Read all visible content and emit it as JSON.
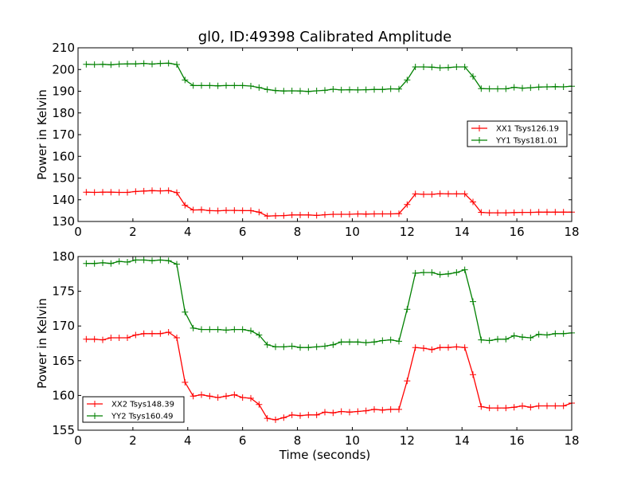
{
  "chart_data": [
    {
      "type": "line",
      "title": "gl0, ID:49398 Calibrated Amplitude",
      "xlabel": "",
      "ylabel": "Power in Kelvin",
      "xlim": [
        0,
        18
      ],
      "ylim": [
        130,
        210
      ],
      "xticks": [
        0,
        2,
        4,
        6,
        8,
        10,
        12,
        14,
        16,
        18
      ],
      "yticks": [
        130,
        140,
        150,
        160,
        170,
        180,
        190,
        200,
        210
      ],
      "grid": false,
      "legend_position": "center-right",
      "x": [
        0.3,
        0.6,
        0.9,
        1.2,
        1.5,
        1.8,
        2.1,
        2.4,
        2.7,
        3.0,
        3.3,
        3.6,
        3.9,
        4.2,
        4.5,
        4.8,
        5.1,
        5.4,
        5.7,
        6.0,
        6.3,
        6.6,
        6.9,
        7.2,
        7.5,
        7.8,
        8.1,
        8.4,
        8.7,
        9.0,
        9.3,
        9.6,
        9.9,
        10.2,
        10.5,
        10.8,
        11.1,
        11.4,
        11.7,
        12.0,
        12.3,
        12.6,
        12.9,
        13.2,
        13.5,
        13.8,
        14.1,
        14.4,
        14.7,
        15.0,
        15.3,
        15.6,
        15.9,
        16.2,
        16.5,
        16.8,
        17.1,
        17.4,
        17.7,
        18.0
      ],
      "series": [
        {
          "name": "XX1 Tsys126.19",
          "color": "#ff0000",
          "values": [
            143.5,
            143.4,
            143.5,
            143.5,
            143.4,
            143.4,
            143.8,
            144.0,
            144.2,
            144.1,
            144.2,
            143.3,
            137.5,
            135.3,
            135.4,
            135.0,
            134.9,
            135.1,
            135.1,
            135.0,
            135.0,
            134.3,
            132.5,
            132.6,
            132.7,
            133.0,
            133.0,
            133.0,
            132.8,
            133.1,
            133.3,
            133.3,
            133.3,
            133.5,
            133.4,
            133.5,
            133.5,
            133.5,
            133.6,
            137.8,
            142.7,
            142.5,
            142.5,
            142.8,
            142.7,
            142.7,
            142.7,
            139.0,
            134.2,
            134.0,
            134.0,
            134.0,
            134.1,
            134.2,
            134.2,
            134.3,
            134.3,
            134.3,
            134.3,
            134.3
          ]
        },
        {
          "name": "YY1 Tsys181.01",
          "color": "#008000",
          "values": [
            202.4,
            202.3,
            202.4,
            202.2,
            202.5,
            202.6,
            202.6,
            202.8,
            202.5,
            202.8,
            202.9,
            202.3,
            195.2,
            192.6,
            192.6,
            192.6,
            192.5,
            192.6,
            192.6,
            192.6,
            192.4,
            191.7,
            190.8,
            190.3,
            190.1,
            190.2,
            190.1,
            189.9,
            190.2,
            190.4,
            190.9,
            190.6,
            190.7,
            190.6,
            190.7,
            190.8,
            190.8,
            191.1,
            191.0,
            195.2,
            201.2,
            201.2,
            201.1,
            200.8,
            200.9,
            201.2,
            201.2,
            196.8,
            191.2,
            191.1,
            191.1,
            191.1,
            191.8,
            191.4,
            191.6,
            191.9,
            192.0,
            192.1,
            192.0,
            192.3
          ]
        }
      ]
    },
    {
      "type": "line",
      "title": "",
      "xlabel": "Time (seconds)",
      "ylabel": "Power in Kelvin",
      "xlim": [
        0,
        18
      ],
      "ylim": [
        155,
        180
      ],
      "xticks": [
        0,
        2,
        4,
        6,
        8,
        10,
        12,
        14,
        16,
        18
      ],
      "yticks": [
        155,
        160,
        165,
        170,
        175,
        180
      ],
      "grid": false,
      "legend_position": "bottom-left",
      "x": [
        0.3,
        0.6,
        0.9,
        1.2,
        1.5,
        1.8,
        2.1,
        2.4,
        2.7,
        3.0,
        3.3,
        3.6,
        3.9,
        4.2,
        4.5,
        4.8,
        5.1,
        5.4,
        5.7,
        6.0,
        6.3,
        6.6,
        6.9,
        7.2,
        7.5,
        7.8,
        8.1,
        8.4,
        8.7,
        9.0,
        9.3,
        9.6,
        9.9,
        10.2,
        10.5,
        10.8,
        11.1,
        11.4,
        11.7,
        12.0,
        12.3,
        12.6,
        12.9,
        13.2,
        13.5,
        13.8,
        14.1,
        14.4,
        14.7,
        15.0,
        15.3,
        15.6,
        15.9,
        16.2,
        16.5,
        16.8,
        17.1,
        17.4,
        17.7,
        18.0
      ],
      "series": [
        {
          "name": "XX2 Tsys148.39",
          "color": "#ff0000",
          "values": [
            168.1,
            168.1,
            168.0,
            168.3,
            168.3,
            168.3,
            168.7,
            168.9,
            168.9,
            168.9,
            169.1,
            168.3,
            161.9,
            159.9,
            160.1,
            159.9,
            159.7,
            159.9,
            160.1,
            159.7,
            159.6,
            158.7,
            156.7,
            156.5,
            156.8,
            157.2,
            157.1,
            157.2,
            157.2,
            157.6,
            157.5,
            157.7,
            157.6,
            157.7,
            157.8,
            158.0,
            157.9,
            158.0,
            158.0,
            162.1,
            166.9,
            166.8,
            166.6,
            166.9,
            166.9,
            167.0,
            166.9,
            163.0,
            158.4,
            158.2,
            158.2,
            158.2,
            158.3,
            158.5,
            158.3,
            158.5,
            158.5,
            158.5,
            158.5,
            158.9
          ]
        },
        {
          "name": "YY2 Tsys160.49",
          "color": "#008000",
          "values": [
            179.0,
            179.0,
            179.1,
            179.0,
            179.3,
            179.2,
            179.5,
            179.5,
            179.4,
            179.5,
            179.4,
            178.9,
            172.0,
            169.7,
            169.5,
            169.5,
            169.5,
            169.4,
            169.5,
            169.5,
            169.3,
            168.7,
            167.3,
            167.0,
            167.0,
            167.1,
            166.9,
            166.9,
            167.0,
            167.1,
            167.3,
            167.7,
            167.7,
            167.7,
            167.6,
            167.7,
            167.9,
            168.0,
            167.8,
            172.4,
            177.6,
            177.7,
            177.7,
            177.4,
            177.5,
            177.7,
            178.1,
            173.5,
            168.0,
            167.9,
            168.1,
            168.1,
            168.6,
            168.4,
            168.3,
            168.8,
            168.7,
            168.9,
            168.9,
            169.0
          ]
        }
      ]
    }
  ]
}
